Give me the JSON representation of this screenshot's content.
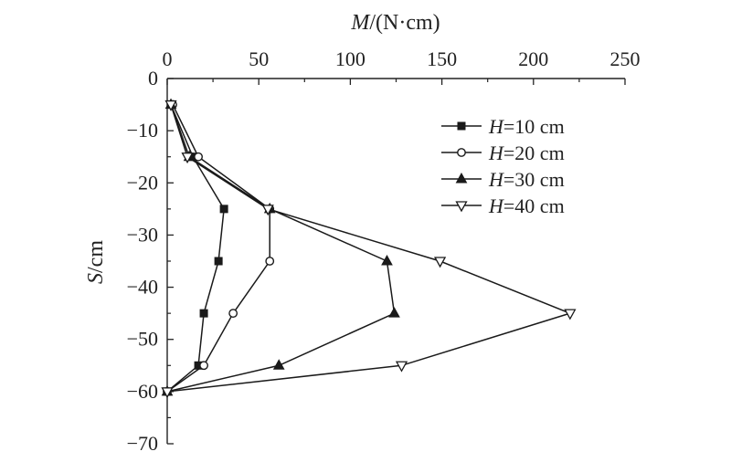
{
  "chart_data": {
    "type": "line",
    "xlabel": {
      "var": "M",
      "unit": "/(N·cm)"
    },
    "ylabel": {
      "var": "S",
      "unit": "/cm"
    },
    "xlim": [
      0,
      250
    ],
    "ylim": [
      -70,
      0
    ],
    "x_axis_position": "top",
    "x_ticks": [
      0,
      50,
      100,
      150,
      200,
      250
    ],
    "y_ticks": [
      0,
      -10,
      -20,
      -30,
      -40,
      -50,
      -60,
      -70
    ],
    "grid": false,
    "legend_position": "top-right",
    "series": [
      {
        "name": "H=10 cm",
        "legend": {
          "var": "H",
          "rest": "=10 cm"
        },
        "marker": "square",
        "points": [
          {
            "m": 2,
            "s": -5
          },
          {
            "m": 14,
            "s": -15
          },
          {
            "m": 31,
            "s": -25
          },
          {
            "m": 28,
            "s": -35
          },
          {
            "m": 20,
            "s": -45
          },
          {
            "m": 17,
            "s": -55
          },
          {
            "m": 0,
            "s": -60
          }
        ]
      },
      {
        "name": "H=20 cm",
        "legend": {
          "var": "H",
          "rest": "=20 cm"
        },
        "marker": "circle",
        "points": [
          {
            "m": 3,
            "s": -5
          },
          {
            "m": 17,
            "s": -15
          },
          {
            "m": 56,
            "s": -25
          },
          {
            "m": 56,
            "s": -35
          },
          {
            "m": 36,
            "s": -45
          },
          {
            "m": 20,
            "s": -55
          },
          {
            "m": 0,
            "s": -60
          }
        ]
      },
      {
        "name": "H=30 cm",
        "legend": {
          "var": "H",
          "rest": "=30 cm"
        },
        "marker": "triangle-up",
        "points": [
          {
            "m": 2,
            "s": -5
          },
          {
            "m": 12,
            "s": -15
          },
          {
            "m": 56,
            "s": -25
          },
          {
            "m": 120,
            "s": -35
          },
          {
            "m": 124,
            "s": -45
          },
          {
            "m": 61,
            "s": -55
          },
          {
            "m": 0,
            "s": -60
          }
        ]
      },
      {
        "name": "H=40 cm",
        "legend": {
          "var": "H",
          "rest": "=40 cm"
        },
        "marker": "triangle-down",
        "points": [
          {
            "m": 2,
            "s": -5
          },
          {
            "m": 11,
            "s": -15
          },
          {
            "m": 55,
            "s": -25
          },
          {
            "m": 149,
            "s": -35
          },
          {
            "m": 220,
            "s": -45
          },
          {
            "m": 128,
            "s": -55
          },
          {
            "m": 0,
            "s": -60
          }
        ]
      }
    ]
  },
  "colors": {
    "axis": "#222222",
    "line": "#1a1a1a",
    "marker_fill": "#1a1a1a",
    "marker_open_fill": "#ffffff"
  }
}
